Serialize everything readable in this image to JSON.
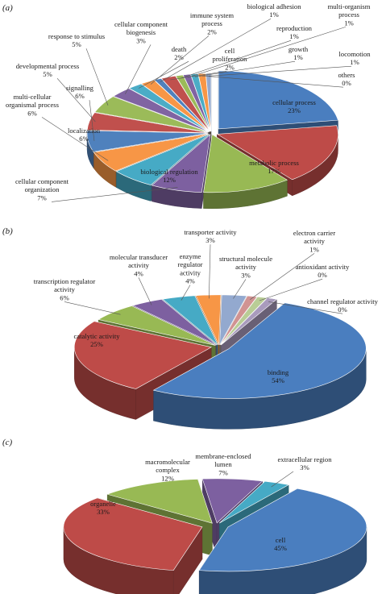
{
  "chart_data": [
    {
      "type": "pie",
      "panel": "(a)",
      "title": "",
      "slices": [
        {
          "label": "cellular process",
          "value": 23,
          "value_label": "23%",
          "color": "#4a7ebf"
        },
        {
          "label": "metabolic process",
          "value": 17,
          "value_label": "17%",
          "color": "#be4b48"
        },
        {
          "label": "biological regulation",
          "value": 12,
          "value_label": "12%",
          "color": "#98b954"
        },
        {
          "label": "cellular component organization",
          "value": 7,
          "value_label": "7%",
          "color": "#7d60a0"
        },
        {
          "label": "localization",
          "value": 6,
          "value_label": "6%",
          "color": "#46aac5"
        },
        {
          "label": "multi-cellular organismal process",
          "value": 6,
          "value_label": "6%",
          "color": "#f79646"
        },
        {
          "label": "signalling",
          "value": 6,
          "value_label": "6%",
          "color": "#4f81bd"
        },
        {
          "label": "developmental process",
          "value": 5,
          "value_label": "5%",
          "color": "#c0504d"
        },
        {
          "label": "response to stimulus",
          "value": 5,
          "value_label": "5%",
          "color": "#9bbb59"
        },
        {
          "label": "cellular component biogenesis",
          "value": 3,
          "value_label": "3%",
          "color": "#8064a2"
        },
        {
          "label": "death",
          "value": 2,
          "value_label": "2%",
          "color": "#4bacc6"
        },
        {
          "label": "immune system process",
          "value": 2,
          "value_label": "2%",
          "color": "#f79646"
        },
        {
          "label": "biological adhesion",
          "value": 1,
          "value_label": "1%",
          "color": "#4f81bd"
        },
        {
          "label": "cell proliferation",
          "value": 2,
          "value_label": "2%",
          "color": "#c0504d"
        },
        {
          "label": "reproduction",
          "value": 1,
          "value_label": "1%",
          "color": "#9bbb59"
        },
        {
          "label": "multi-organism process",
          "value": 1,
          "value_label": "1%",
          "color": "#8064a2"
        },
        {
          "label": "growth",
          "value": 1,
          "value_label": "1%",
          "color": "#4bacc6"
        },
        {
          "label": "locomotion",
          "value": 1,
          "value_label": "1%",
          "color": "#f79646"
        },
        {
          "label": "others",
          "value": 0,
          "value_label": "0%",
          "color": "#93a9cf"
        }
      ]
    },
    {
      "type": "pie",
      "panel": "(b)",
      "title": "",
      "slices": [
        {
          "label": "binding",
          "value": 54,
          "value_label": "54%",
          "color": "#4a7ebf"
        },
        {
          "label": "catalytic activity",
          "value": 25,
          "value_label": "25%",
          "color": "#be4b48"
        },
        {
          "label": "transcription regulator activity",
          "value": 6,
          "value_label": "6%",
          "color": "#98b954"
        },
        {
          "label": "molecular transducer activity",
          "value": 4,
          "value_label": "4%",
          "color": "#7d60a0"
        },
        {
          "label": "enzyme regulator activity",
          "value": 4,
          "value_label": "4%",
          "color": "#46aac5"
        },
        {
          "label": "transporter activity",
          "value": 3,
          "value_label": "3%",
          "color": "#f79646"
        },
        {
          "label": "structural molecule activity",
          "value": 3,
          "value_label": "3%",
          "color": "#93a9cf"
        },
        {
          "label": "electron carrier activity",
          "value": 1,
          "value_label": "1%",
          "color": "#d19392"
        },
        {
          "label": "antioxidant activity",
          "value": 0,
          "value_label": "0%",
          "color": "#b9cd96"
        },
        {
          "label": "channel regulator activity",
          "value": 0,
          "value_label": "0%",
          "color": "#a99bbd"
        }
      ]
    },
    {
      "type": "pie",
      "panel": "(c)",
      "title": "",
      "slices": [
        {
          "label": "cell",
          "value": 45,
          "value_label": "45%",
          "color": "#4a7ebf"
        },
        {
          "label": "organelle",
          "value": 33,
          "value_label": "33%",
          "color": "#be4b48"
        },
        {
          "label": "macromolecular complex",
          "value": 12,
          "value_label": "12%",
          "color": "#98b954"
        },
        {
          "label": "membrane-enclosed lumen",
          "value": 7,
          "value_label": "7%",
          "color": "#7d60a0"
        },
        {
          "label": "extracellular region",
          "value": 3,
          "value_label": "3%",
          "color": "#46aac5"
        }
      ]
    }
  ]
}
